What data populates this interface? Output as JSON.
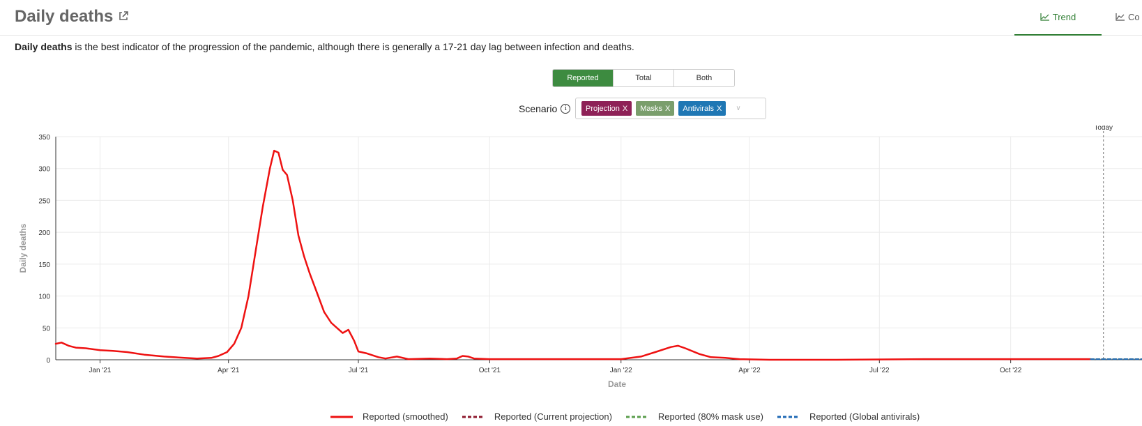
{
  "header": {
    "title": "Daily deaths",
    "tabs": [
      {
        "label": "Trend"
      },
      {
        "label": "Co"
      }
    ]
  },
  "description": {
    "bold": "Daily deaths",
    "text": " is the best indicator of the progression of the pandemic, although there is generally a 17-21 day lag between infection and deaths."
  },
  "toggle": {
    "options": [
      "Reported",
      "Total",
      "Both"
    ],
    "selected": "Reported"
  },
  "scenario": {
    "label": "Scenario",
    "chips": [
      {
        "label": "Projection",
        "color": "#8e2157"
      },
      {
        "label": "Masks",
        "color": "#7a9e6c"
      },
      {
        "label": "Antivirals",
        "color": "#1f77b4"
      }
    ],
    "remove_glyph": "X"
  },
  "chart_data": {
    "type": "line",
    "ylabel": "Daily deaths",
    "xlabel": "Date",
    "ylim": [
      0,
      350
    ],
    "yticks": [
      0,
      50,
      100,
      150,
      200,
      250,
      300,
      350
    ],
    "xticks": [
      "Jan '21",
      "Apr '21",
      "Jul '21",
      "Oct '21",
      "Jan '22",
      "Apr '22",
      "Jul '22",
      "Oct '22"
    ],
    "today_label": "Today",
    "grid": true,
    "legend_position": "bottom",
    "series": [
      {
        "name": "Reported (smoothed)",
        "color": "#ee1111",
        "style": "solid",
        "points": [
          [
            "2020-12-01",
            25
          ],
          [
            "2020-12-05",
            27
          ],
          [
            "2020-12-10",
            22
          ],
          [
            "2020-12-15",
            19
          ],
          [
            "2020-12-22",
            18
          ],
          [
            "2021-01-01",
            15
          ],
          [
            "2021-01-10",
            14
          ],
          [
            "2021-01-20",
            12
          ],
          [
            "2021-02-01",
            8
          ],
          [
            "2021-02-15",
            5
          ],
          [
            "2021-03-01",
            3
          ],
          [
            "2021-03-10",
            2
          ],
          [
            "2021-03-20",
            3
          ],
          [
            "2021-03-25",
            6
          ],
          [
            "2021-03-31",
            12
          ],
          [
            "2021-04-05",
            25
          ],
          [
            "2021-04-10",
            50
          ],
          [
            "2021-04-15",
            100
          ],
          [
            "2021-04-20",
            170
          ],
          [
            "2021-04-25",
            240
          ],
          [
            "2021-04-30",
            300
          ],
          [
            "2021-05-03",
            328
          ],
          [
            "2021-05-06",
            325
          ],
          [
            "2021-05-09",
            298
          ],
          [
            "2021-05-12",
            290
          ],
          [
            "2021-05-16",
            250
          ],
          [
            "2021-05-20",
            195
          ],
          [
            "2021-05-24",
            162
          ],
          [
            "2021-05-28",
            135
          ],
          [
            "2021-06-02",
            105
          ],
          [
            "2021-06-07",
            75
          ],
          [
            "2021-06-12",
            58
          ],
          [
            "2021-06-16",
            50
          ],
          [
            "2021-06-20",
            42
          ],
          [
            "2021-06-24",
            47
          ],
          [
            "2021-06-28",
            30
          ],
          [
            "2021-07-01",
            13
          ],
          [
            "2021-07-07",
            10
          ],
          [
            "2021-07-15",
            4
          ],
          [
            "2021-07-20",
            2
          ],
          [
            "2021-07-28",
            5
          ],
          [
            "2021-08-05",
            1
          ],
          [
            "2021-08-20",
            2
          ],
          [
            "2021-09-01",
            1
          ],
          [
            "2021-09-08",
            2
          ],
          [
            "2021-09-12",
            6
          ],
          [
            "2021-09-16",
            5
          ],
          [
            "2021-09-20",
            2
          ],
          [
            "2021-10-01",
            1
          ],
          [
            "2021-11-01",
            1
          ],
          [
            "2021-12-01",
            1
          ],
          [
            "2022-01-01",
            1
          ],
          [
            "2022-01-15",
            5
          ],
          [
            "2022-01-25",
            12
          ],
          [
            "2022-02-05",
            20
          ],
          [
            "2022-02-10",
            22
          ],
          [
            "2022-02-15",
            18
          ],
          [
            "2022-02-25",
            9
          ],
          [
            "2022-03-05",
            4
          ],
          [
            "2022-03-15",
            3
          ],
          [
            "2022-03-25",
            1
          ],
          [
            "2022-04-15",
            0
          ],
          [
            "2022-06-01",
            0
          ],
          [
            "2022-08-01",
            1
          ],
          [
            "2022-10-01",
            1
          ],
          [
            "2022-11-15",
            1
          ],
          [
            "2022-11-26",
            1
          ]
        ]
      },
      {
        "name": "Reported (Current projection)",
        "color": "#8e1a2e",
        "style": "dashed",
        "points": [
          [
            "2022-11-26",
            1
          ],
          [
            "2023-01-01",
            1
          ]
        ]
      },
      {
        "name": "Reported (80% mask use)",
        "color": "#5b9e4d",
        "style": "dashed",
        "points": [
          [
            "2022-11-26",
            1
          ],
          [
            "2023-01-01",
            1
          ]
        ]
      },
      {
        "name": "Reported (Global antivirals)",
        "color": "#1f69b4",
        "style": "dashed",
        "points": [
          [
            "2022-11-26",
            1
          ],
          [
            "2023-01-01",
            1
          ]
        ]
      }
    ]
  }
}
